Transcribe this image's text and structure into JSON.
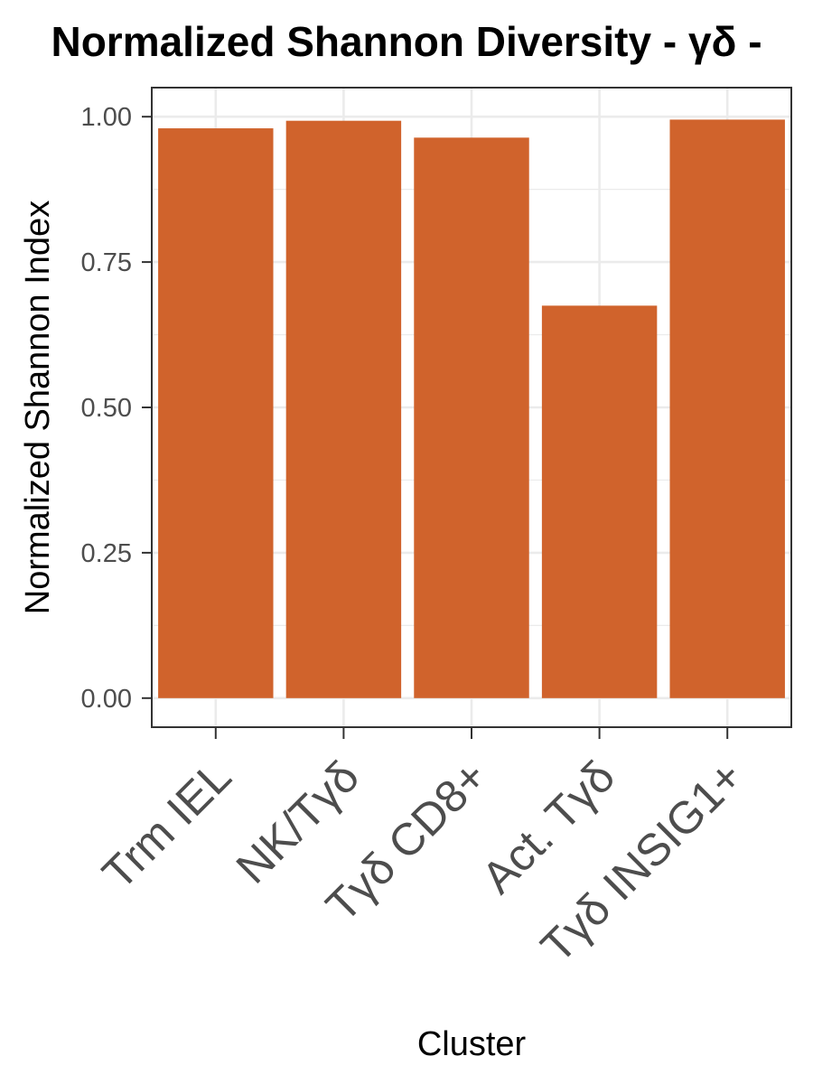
{
  "chart_data": {
    "type": "bar",
    "title": "Normalized Shannon Diversity - γδ -",
    "xlabel": "Cluster",
    "ylabel": "Normalized Shannon Index",
    "categories": [
      "Trm IEL",
      "NK/Tγδ",
      "Tγδ CD8+",
      "Act. Tγδ",
      "Tγδ INSIG1+"
    ],
    "values": [
      0.98,
      0.993,
      0.964,
      0.675,
      0.995
    ],
    "ylim": [
      -0.05,
      1.05
    ],
    "yticks": [
      0.0,
      0.25,
      0.5,
      0.75,
      1.0
    ],
    "ytick_labels": [
      "0.00",
      "0.25",
      "0.50",
      "0.75",
      "1.00"
    ],
    "bar_color": "#D0632C",
    "grid": true,
    "theme": "bw"
  }
}
